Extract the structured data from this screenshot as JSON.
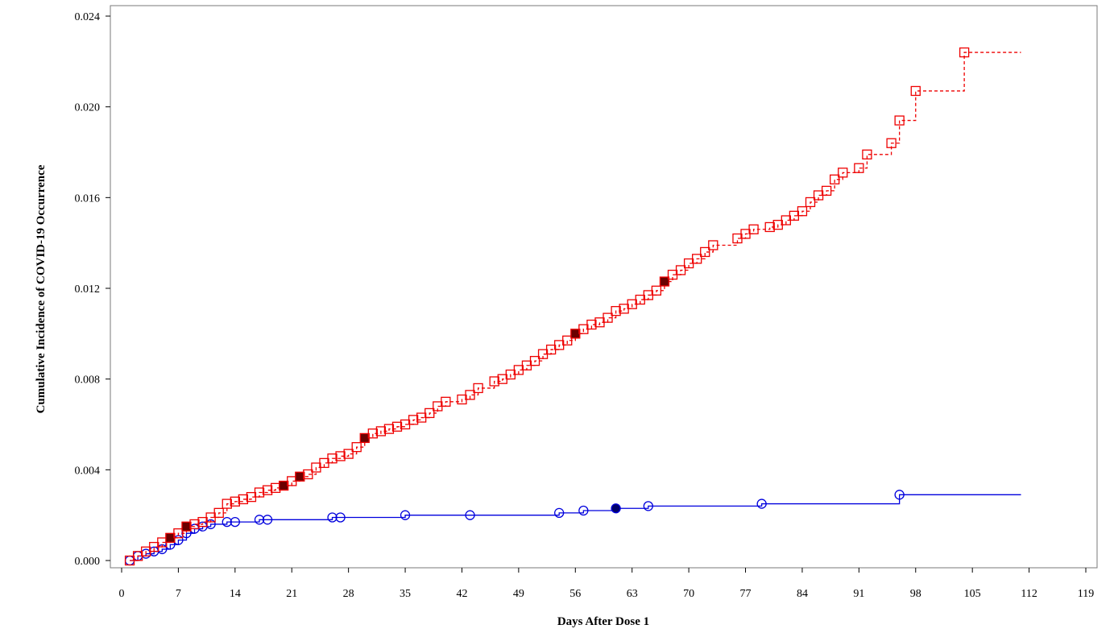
{
  "chart_data": {
    "type": "line",
    "title": "",
    "xlabel": "Days After Dose 1",
    "ylabel": "Cumulative Incidence of COVID-19 Occurrence",
    "xlim": [
      0,
      119
    ],
    "ylim": [
      0,
      0.024
    ],
    "x_ticks": [
      "0",
      "7",
      "14",
      "21",
      "28",
      "35",
      "42",
      "49",
      "56",
      "63",
      "70",
      "77",
      "84",
      "91",
      "98",
      "105",
      "112",
      "119"
    ],
    "y_ticks": [
      "0.000",
      "0.004",
      "0.008",
      "0.012",
      "0.016",
      "0.020",
      "0.024"
    ],
    "grid": false,
    "legend": "none",
    "series": [
      {
        "style": "step",
        "line": "solid",
        "marker": "circle",
        "color": "#0000dd",
        "end_x": 111,
        "points": [
          [
            1,
            0.0
          ],
          [
            2,
            0.0002
          ],
          [
            3,
            0.0003
          ],
          [
            4,
            0.0004
          ],
          [
            5,
            0.0005
          ],
          [
            6,
            0.0007
          ],
          [
            7,
            0.0009
          ],
          [
            8,
            0.0012
          ],
          [
            9,
            0.0014
          ],
          [
            10,
            0.0015
          ],
          [
            11,
            0.0016
          ],
          [
            13,
            0.0017
          ],
          [
            14,
            0.0017
          ],
          [
            17,
            0.0018
          ],
          [
            18,
            0.0018
          ],
          [
            26,
            0.0019
          ],
          [
            27,
            0.0019
          ],
          [
            35,
            0.002
          ],
          [
            43,
            0.002
          ],
          [
            54,
            0.0021
          ],
          [
            57,
            0.0022
          ],
          [
            61,
            0.0023
          ],
          [
            65,
            0.0024
          ],
          [
            79,
            0.0025
          ],
          [
            96,
            0.0029
          ]
        ],
        "filled_points": [
          [
            61,
            0.0023
          ]
        ]
      },
      {
        "style": "step",
        "line": "dashed",
        "marker": "square",
        "color": "#ee0000",
        "end_x": 111,
        "points": [
          [
            1,
            0.0
          ],
          [
            2,
            0.0002
          ],
          [
            3,
            0.0004
          ],
          [
            4,
            0.0006
          ],
          [
            5,
            0.0008
          ],
          [
            6,
            0.001
          ],
          [
            7,
            0.0012
          ],
          [
            8,
            0.0015
          ],
          [
            9,
            0.0016
          ],
          [
            10,
            0.0017
          ],
          [
            11,
            0.0019
          ],
          [
            12,
            0.0021
          ],
          [
            13,
            0.0025
          ],
          [
            14,
            0.0026
          ],
          [
            15,
            0.0027
          ],
          [
            16,
            0.0028
          ],
          [
            17,
            0.003
          ],
          [
            18,
            0.0031
          ],
          [
            19,
            0.0032
          ],
          [
            20,
            0.0033
          ],
          [
            21,
            0.0035
          ],
          [
            22,
            0.0037
          ],
          [
            23,
            0.0038
          ],
          [
            24,
            0.0041
          ],
          [
            25,
            0.0043
          ],
          [
            26,
            0.0045
          ],
          [
            27,
            0.0046
          ],
          [
            28,
            0.0047
          ],
          [
            29,
            0.005
          ],
          [
            30,
            0.0054
          ],
          [
            31,
            0.0056
          ],
          [
            32,
            0.0057
          ],
          [
            33,
            0.0058
          ],
          [
            34,
            0.0059
          ],
          [
            35,
            0.006
          ],
          [
            36,
            0.0062
          ],
          [
            37,
            0.0063
          ],
          [
            38,
            0.0065
          ],
          [
            39,
            0.0068
          ],
          [
            40,
            0.007
          ],
          [
            42,
            0.0071
          ],
          [
            43,
            0.0073
          ],
          [
            44,
            0.0076
          ],
          [
            46,
            0.0079
          ],
          [
            47,
            0.008
          ],
          [
            48,
            0.0082
          ],
          [
            49,
            0.0084
          ],
          [
            50,
            0.0086
          ],
          [
            51,
            0.0088
          ],
          [
            52,
            0.0091
          ],
          [
            53,
            0.0093
          ],
          [
            54,
            0.0095
          ],
          [
            55,
            0.0097
          ],
          [
            56,
            0.01
          ],
          [
            57,
            0.0102
          ],
          [
            58,
            0.0104
          ],
          [
            59,
            0.0105
          ],
          [
            60,
            0.0107
          ],
          [
            61,
            0.011
          ],
          [
            62,
            0.0111
          ],
          [
            63,
            0.0113
          ],
          [
            64,
            0.0115
          ],
          [
            65,
            0.0117
          ],
          [
            66,
            0.0119
          ],
          [
            67,
            0.0123
          ],
          [
            68,
            0.0126
          ],
          [
            69,
            0.0128
          ],
          [
            70,
            0.0131
          ],
          [
            71,
            0.0133
          ],
          [
            72,
            0.0136
          ],
          [
            73,
            0.0139
          ],
          [
            76,
            0.0142
          ],
          [
            77,
            0.0144
          ],
          [
            78,
            0.0146
          ],
          [
            80,
            0.0147
          ],
          [
            81,
            0.0148
          ],
          [
            82,
            0.015
          ],
          [
            83,
            0.0152
          ],
          [
            84,
            0.0154
          ],
          [
            85,
            0.0158
          ],
          [
            86,
            0.0161
          ],
          [
            87,
            0.0163
          ],
          [
            88,
            0.0168
          ],
          [
            89,
            0.0171
          ],
          [
            91,
            0.0173
          ],
          [
            92,
            0.0179
          ],
          [
            95,
            0.0184
          ],
          [
            96,
            0.0194
          ],
          [
            98,
            0.0207
          ],
          [
            104,
            0.0224
          ]
        ],
        "filled_points": [
          [
            6,
            0.001
          ],
          [
            8,
            0.0015
          ],
          [
            20,
            0.0033
          ],
          [
            22,
            0.0037
          ],
          [
            30,
            0.0054
          ],
          [
            56,
            0.01
          ],
          [
            67,
            0.0123
          ]
        ]
      }
    ]
  }
}
